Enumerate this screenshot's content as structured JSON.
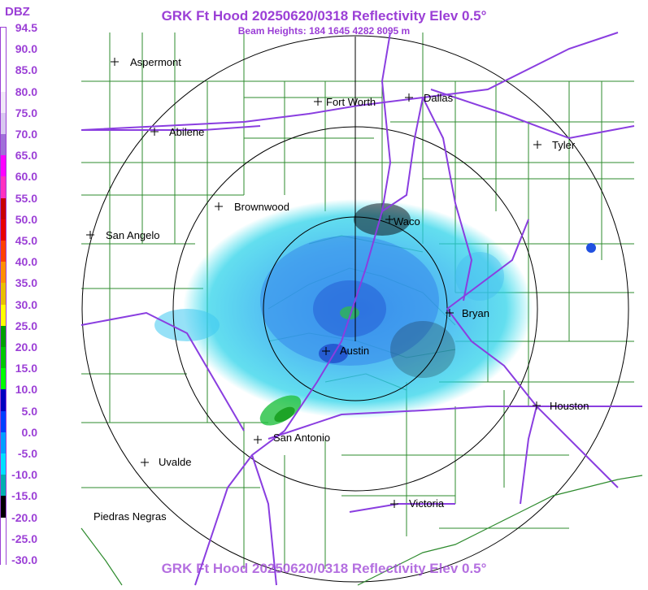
{
  "header": {
    "title": "GRK Ft Hood 20250620/0318 Reflectivity Elev 0.5°",
    "beam_heights": "Beam Heights: 184 1645 4282 8095 m",
    "footer_title": "GRK Ft Hood 20250620/0318 Reflectivity Elev 0.5°"
  },
  "legend": {
    "unit": "DBZ",
    "levels": [
      "94.5",
      "90.0",
      "85.0",
      "80.0",
      "75.0",
      "70.0",
      "65.0",
      "60.0",
      "55.0",
      "50.0",
      "45.0",
      "40.0",
      "35.0",
      "30.0",
      "25.0",
      "20.0",
      "15.0",
      "10.0",
      "5.0",
      "0.0",
      "-5.0",
      "-10.0",
      "-15.0",
      "-20.0",
      "-25.0",
      "-30.0"
    ],
    "colors": [
      "#ffffff",
      "#ffffff",
      "#ffffff",
      "#f0e8f8",
      "#d8c8f0",
      "#a070d8",
      "#ff00ff",
      "#ff30c0",
      "#c80000",
      "#e80000",
      "#ff4000",
      "#ff9000",
      "#e8c000",
      "#ffff00",
      "#00a000",
      "#00c800",
      "#00ff00",
      "#0000c0",
      "#0040ff",
      "#00a0ff",
      "#00e0ff",
      "#00b0b0",
      "#000000",
      "#ffffff",
      "#ffffff",
      "#ffffff"
    ]
  },
  "map": {
    "cities": [
      {
        "name": "Aspermont"
      },
      {
        "name": "Fort Worth"
      },
      {
        "name": "Dallas"
      },
      {
        "name": "Abilene"
      },
      {
        "name": "Tyler"
      },
      {
        "name": "Brownwood"
      },
      {
        "name": "Waco"
      },
      {
        "name": "San Angelo"
      },
      {
        "name": "Bryan"
      },
      {
        "name": "Austin"
      },
      {
        "name": "Houston"
      },
      {
        "name": "San Antonio"
      },
      {
        "name": "Uvalde"
      },
      {
        "name": "Victoria"
      },
      {
        "name": "Piedras Negras"
      }
    ]
  }
}
